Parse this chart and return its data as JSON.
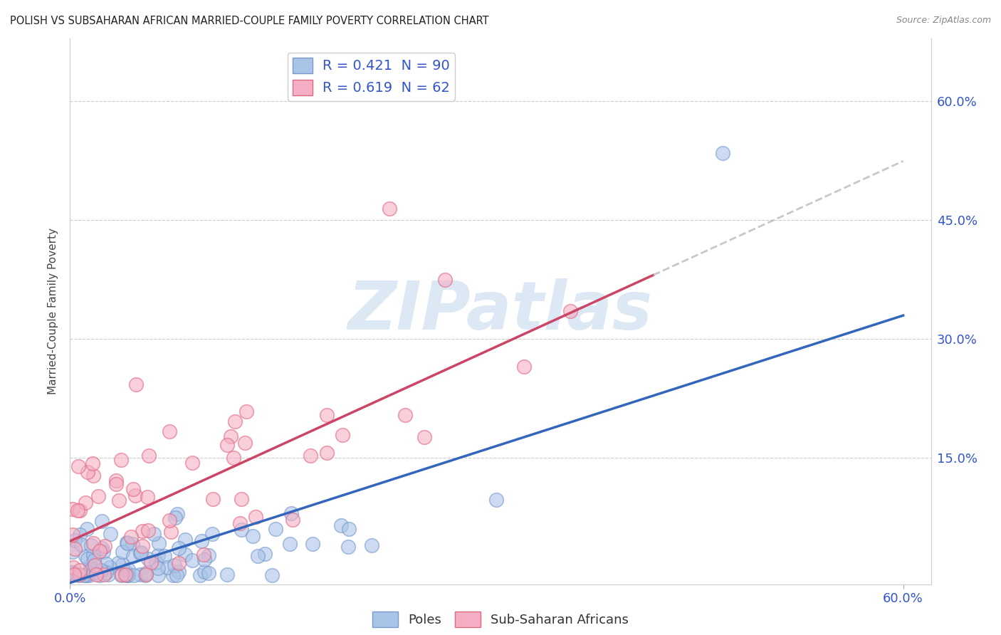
{
  "title": "POLISH VS SUBSAHARAN AFRICAN MARRIED-COUPLE FAMILY POVERTY CORRELATION CHART",
  "source": "Source: ZipAtlas.com",
  "ylabel": "Married-Couple Family Poverty",
  "xlim": [
    0.0,
    0.62
  ],
  "ylim": [
    -0.01,
    0.68
  ],
  "poles_color": "#aac4e8",
  "poles_edge": "#7799cc",
  "subsaharan_color": "#f4afc4",
  "subsaharan_edge": "#e06880",
  "poles_R": 0.421,
  "poles_N": 90,
  "subsaharan_R": 0.619,
  "subsaharan_N": 62,
  "legend_text_color": "#3355cc",
  "background_color": "#ffffff",
  "poles_line_color": "#3366bb",
  "subsaharan_line_color": "#cc4466",
  "dashed_line_color": "#bbbbbb",
  "watermark_color": "#dde8f5",
  "title_color": "#222222",
  "source_color": "#888888",
  "ylabel_color": "#444444",
  "tick_color": "#3355cc",
  "grid_color": "#cccccc"
}
